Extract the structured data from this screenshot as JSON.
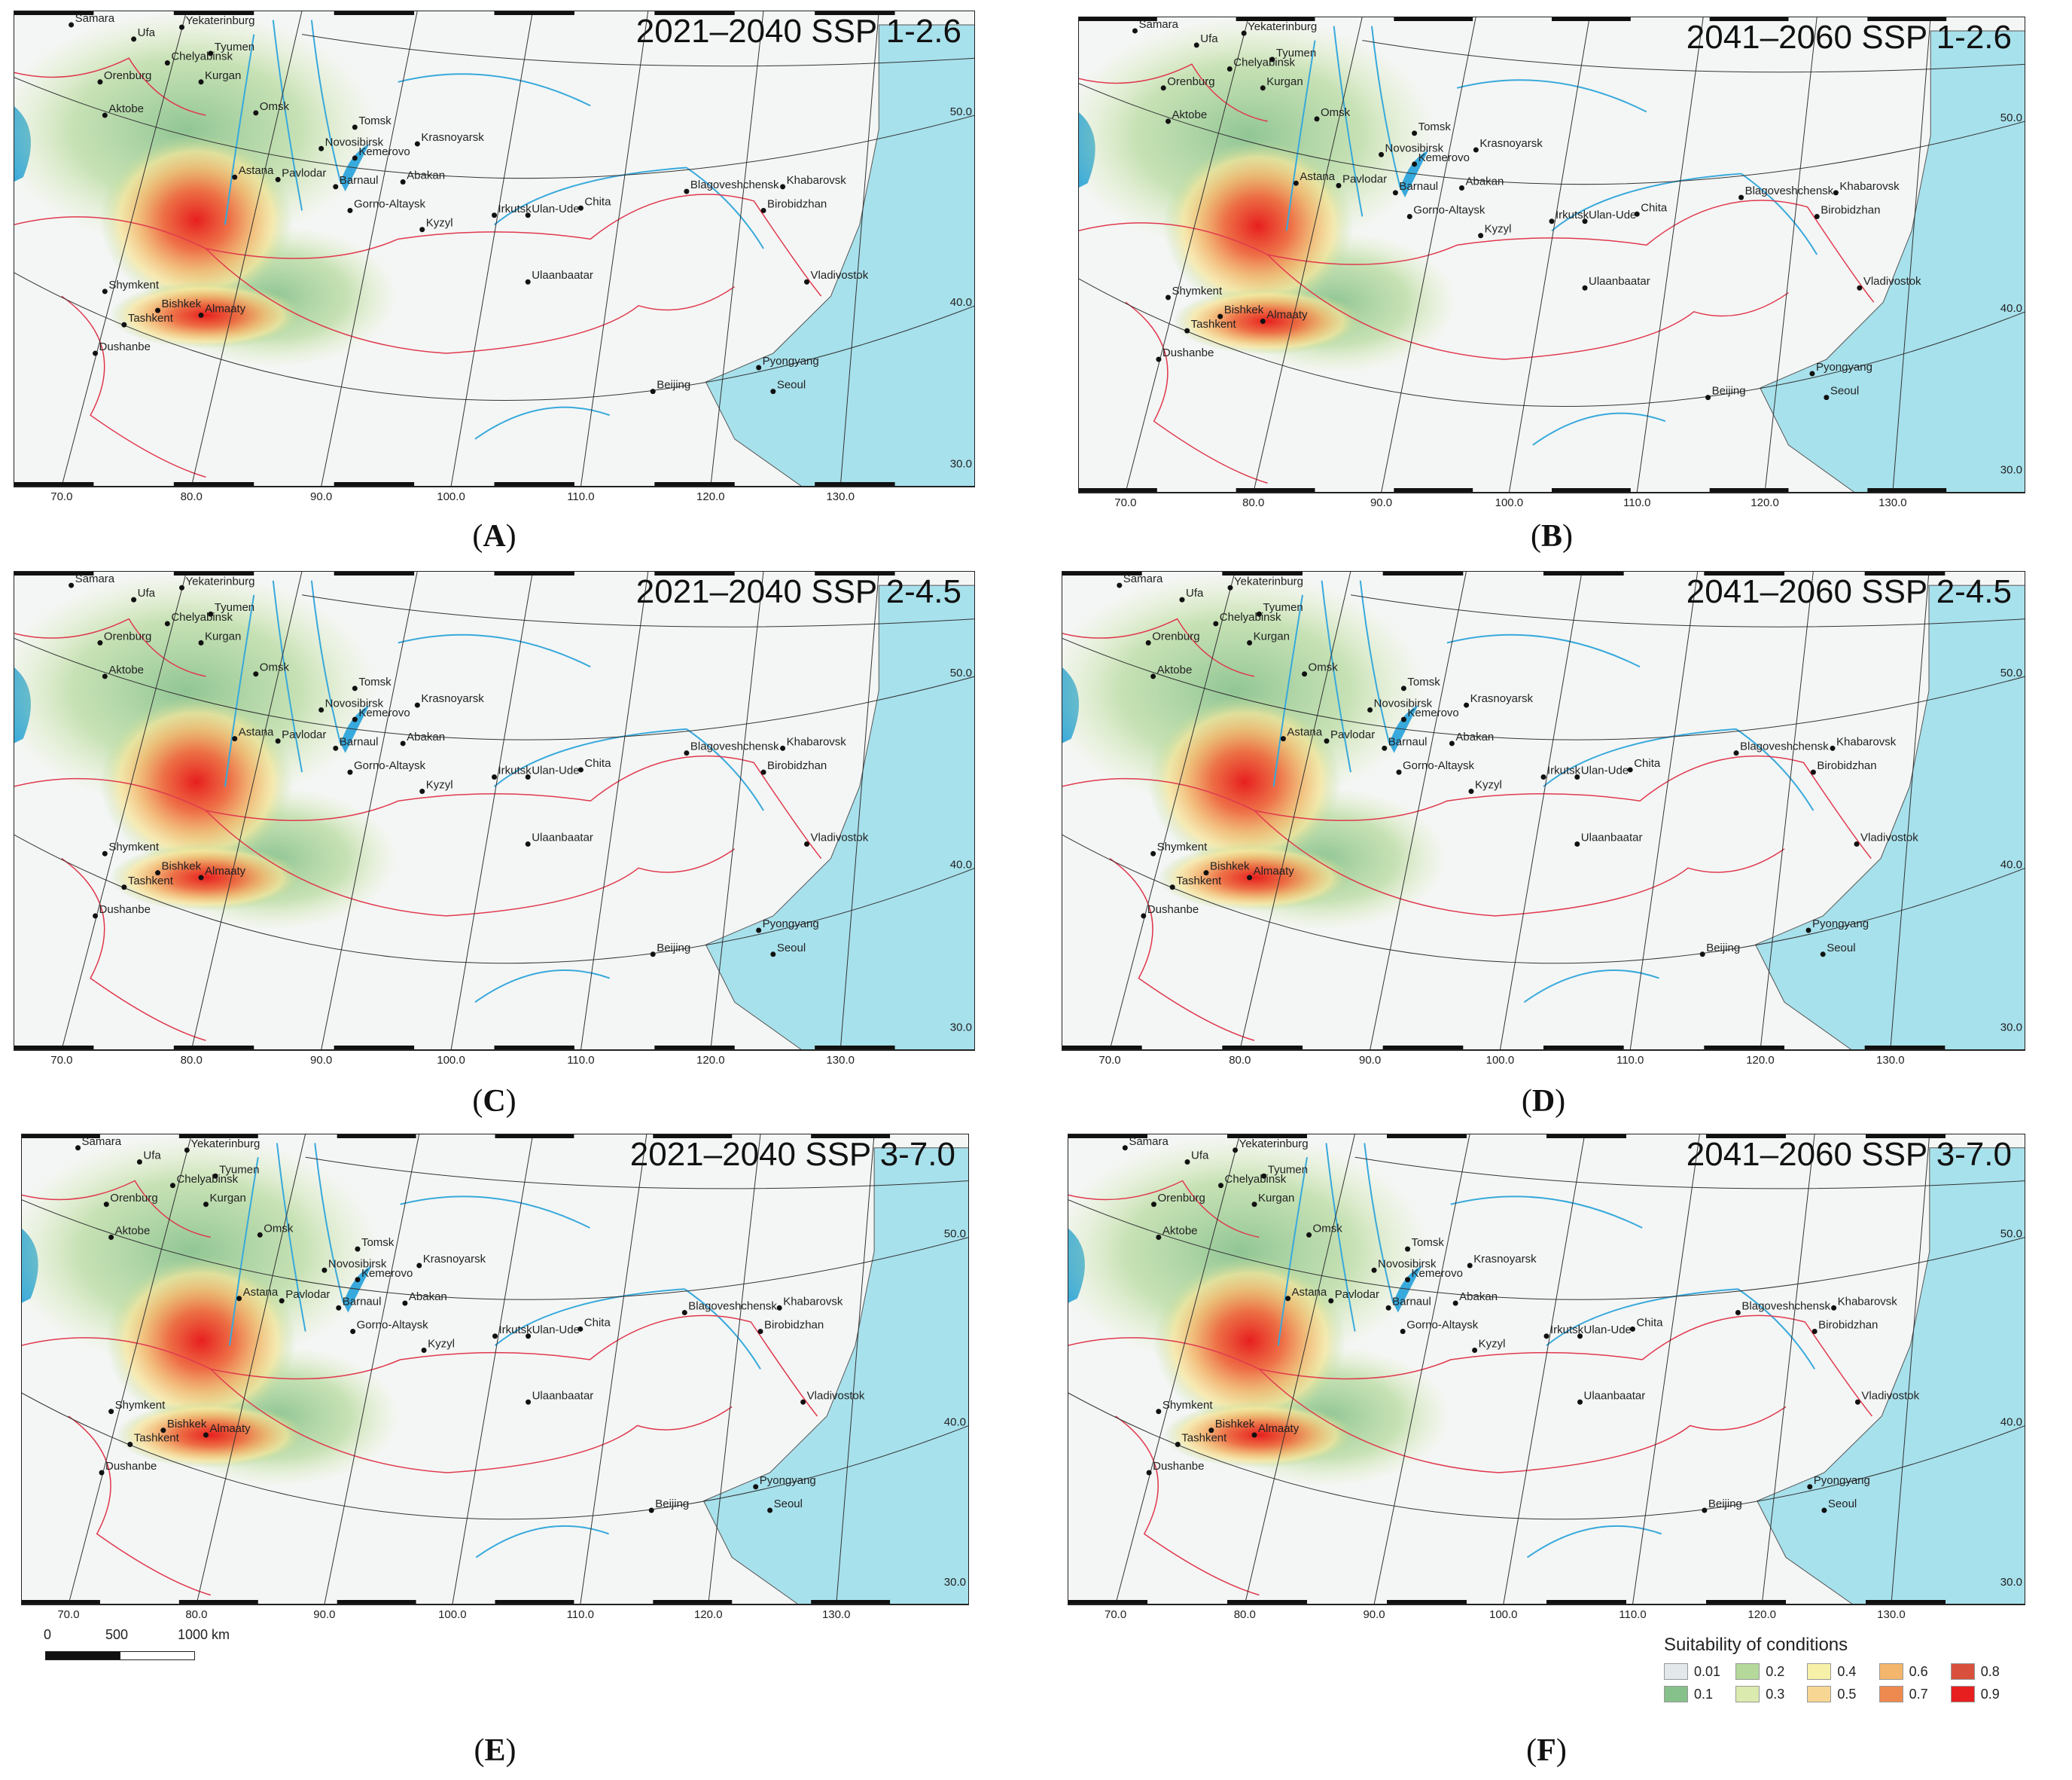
{
  "panels": [
    {
      "id": "A",
      "title": "2021–2040 SSP 1-2.6",
      "letter": "A"
    },
    {
      "id": "B",
      "title": "2041–2060 SSP 1-2.6",
      "letter": "B"
    },
    {
      "id": "C",
      "title": "2021–2040 SSP 2-4.5",
      "letter": "C"
    },
    {
      "id": "D",
      "title": "2041–2060 SSP 2-4.5",
      "letter": "D"
    },
    {
      "id": "E",
      "title": "2021–2040 SSP 3-7.0",
      "letter": "E"
    },
    {
      "id": "F",
      "title": "2041–2060 SSP 3-7.0",
      "letter": "F"
    }
  ],
  "lon_ticks": [
    "70.0",
    "80.0",
    "90.0",
    "100.0",
    "110.0",
    "120.0",
    "130.0"
  ],
  "lat_ticks": [
    "30.0",
    "40.0",
    "50.0"
  ],
  "cities": [
    "Samara",
    "Ufa",
    "Yekaterinburg",
    "Chelyabinsk",
    "Tyumen",
    "Kurgan",
    "Orenburg",
    "Aktobe",
    "Omsk",
    "Novosibirsk",
    "Tomsk",
    "Krasnoyarsk",
    "Kemerovo",
    "Astana",
    "Pavlodar",
    "Barnaul",
    "Abakan",
    "Gorno-Altaysk",
    "Kyzyl",
    "Irkutsk",
    "Ulan-Ude",
    "Chita",
    "Blagoveshchensk",
    "Khabarovsk",
    "Birobidzhan",
    "Vladivostok",
    "Ulaanbaatar",
    "Shymkent",
    "Bishkek",
    "Almaaty",
    "Tashkent",
    "Dushanbe",
    "Beijing",
    "Pyongyang",
    "Seoul"
  ],
  "scalebar": {
    "labels": [
      "0",
      "500",
      "1000 km"
    ]
  },
  "legend": {
    "title": "Suitability of conditions",
    "items": [
      {
        "label": "0.01",
        "color": "#e3e9ea"
      },
      {
        "label": "0.2",
        "color": "#b4d99a"
      },
      {
        "label": "0.4",
        "color": "#f7f0a8"
      },
      {
        "label": "0.6",
        "color": "#f3b66c"
      },
      {
        "label": "0.8",
        "color": "#d9513c"
      },
      {
        "label": "0.1",
        "color": "#86c08a"
      },
      {
        "label": "0.3",
        "color": "#dbeaae"
      },
      {
        "label": "0.5",
        "color": "#f7d693"
      },
      {
        "label": "0.7",
        "color": "#ee8a4f"
      },
      {
        "label": "0.9",
        "color": "#e71f1f"
      }
    ]
  }
}
